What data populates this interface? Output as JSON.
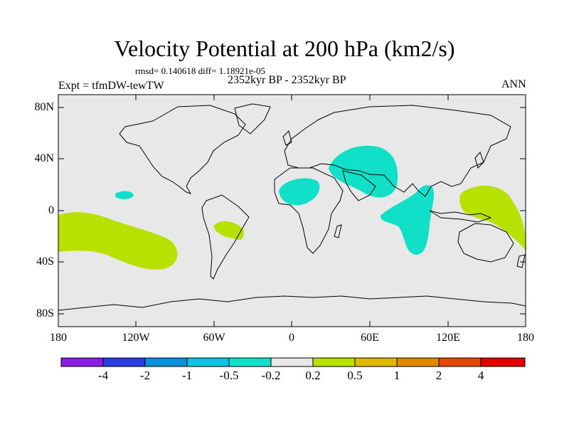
{
  "title": "Velocity Potential at 200 hPa (km2/s)",
  "stats": "rmsd= 0.140618 diff= 1.18921e-05",
  "left_label": "Expt = tfmDW-tewTW",
  "center_label": "2352kyr BP - 2352kyr BP",
  "right_label": "ANN",
  "lat_ticks": [
    "80N",
    "40N",
    "0",
    "40S",
    "80S"
  ],
  "lon_ticks": [
    "180",
    "120W",
    "60W",
    "0",
    "60E",
    "120E",
    "180"
  ],
  "colorbar": {
    "labels": [
      "-4",
      "-2",
      "-1",
      "-0.5",
      "-0.2",
      "0.2",
      "0.5",
      "1",
      "2",
      "4"
    ],
    "colors": [
      "#8a1de0",
      "#2a3de0",
      "#0a8ee0",
      "#10c0e8",
      "#10e0c8",
      "#e8e8e8",
      "#b8e000",
      "#e0b800",
      "#e08a00",
      "#e04a00",
      "#e00000"
    ]
  },
  "colors": {
    "land_bg": "#e8e8e8",
    "negative_anomaly": "#10e0c8",
    "positive_anomaly": "#b8e000"
  }
}
